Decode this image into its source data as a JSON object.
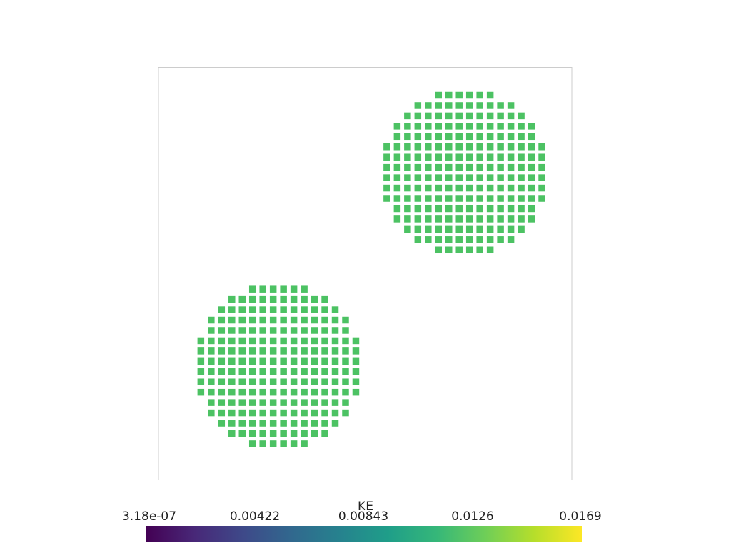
{
  "chart_data": {
    "type": "scatter",
    "description_marker": "square",
    "domain": {
      "x": [
        0,
        1
      ],
      "y": [
        0,
        1
      ]
    },
    "series": [
      {
        "scalar": "KE",
        "color": "#4cc263",
        "points": []
      }
    ],
    "clusters": [
      {
        "cx": 0.29,
        "cy": 0.275,
        "radius": 0.2
      },
      {
        "cx": 0.74,
        "cy": 0.745,
        "radius": 0.2
      }
    ],
    "grid_spacing": 0.025,
    "colorbar": {
      "title": "KE",
      "colormap": "viridis",
      "min": 3.18e-07,
      "max": 0.0169,
      "tick_labels": [
        "3.18e-07",
        "0.00422",
        "0.00843",
        "0.0126",
        "0.0169"
      ],
      "tick_values": [
        3.18e-07,
        0.00422,
        0.00843,
        0.0126,
        0.0169
      ],
      "stops": [
        "#440154",
        "#482878",
        "#3e4989",
        "#31688e",
        "#26828e",
        "#1f9e89",
        "#35b779",
        "#6ece58",
        "#b5de2b",
        "#fde725"
      ]
    },
    "frame_color": "#cccccc"
  }
}
